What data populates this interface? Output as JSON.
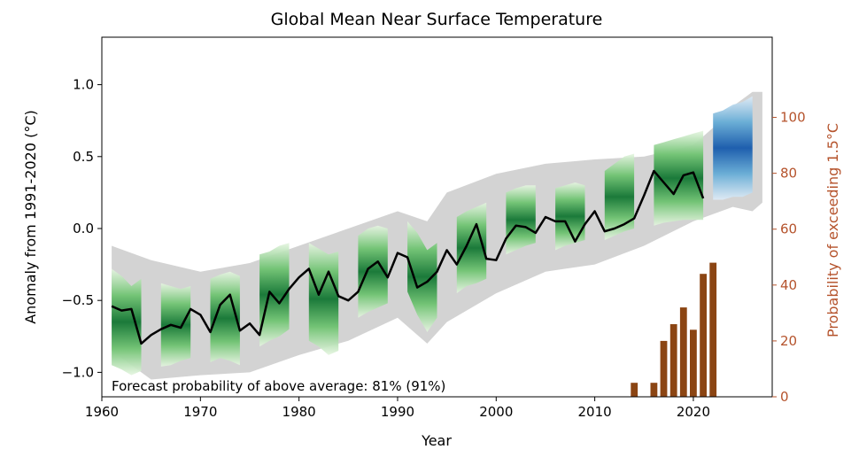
{
  "chart_data": {
    "type": "line",
    "title": "Global Mean Near Surface Temperature",
    "xlabel": "Year",
    "ylabel": "Anomaly from 1991-2020 (°C)",
    "ylabel_right": "Probability of exceeding 1.5°C",
    "xlim": [
      1960,
      2028
    ],
    "ylim": [
      -1.17,
      1.33
    ],
    "ylim_right": [
      0,
      128.7
    ],
    "xticks": [
      "1960",
      "1970",
      "1980",
      "1990",
      "2000",
      "2010",
      "2020"
    ],
    "yticks": [
      "−1.0",
      "−0.5",
      "0.0",
      "0.5",
      "1.0"
    ],
    "yticks_right": [
      "0",
      "20",
      "40",
      "60",
      "80",
      "100"
    ],
    "annotation": "Forecast probability of above average: 81% (91%)",
    "colors": {
      "observed_line": "#000000",
      "hindcast_shade": "#1e8a45",
      "forecast_shade": "#1f6fbf",
      "range_band": "#d3d3d3",
      "probability_bars": "#8b4513",
      "right_axis": "#b5532c"
    },
    "series": [
      {
        "name": "observed",
        "x": [
          1961,
          1962,
          1963,
          1964,
          1965,
          1966,
          1967,
          1968,
          1969,
          1970,
          1971,
          1972,
          1973,
          1974,
          1975,
          1976,
          1977,
          1978,
          1979,
          1980,
          1981,
          1982,
          1983,
          1984,
          1985,
          1986,
          1987,
          1988,
          1989,
          1990,
          1991,
          1992,
          1993,
          1994,
          1995,
          1996,
          1997,
          1998,
          1999,
          2000,
          2001,
          2002,
          2003,
          2004,
          2005,
          2006,
          2007,
          2008,
          2009,
          2010,
          2011,
          2012,
          2013,
          2014,
          2015,
          2016,
          2017,
          2018,
          2019,
          2020,
          2021
        ],
        "y": [
          -0.54,
          -0.57,
          -0.56,
          -0.8,
          -0.74,
          -0.7,
          -0.67,
          -0.69,
          -0.56,
          -0.6,
          -0.72,
          -0.53,
          -0.46,
          -0.71,
          -0.66,
          -0.74,
          -0.44,
          -0.52,
          -0.42,
          -0.34,
          -0.28,
          -0.46,
          -0.3,
          -0.47,
          -0.5,
          -0.44,
          -0.28,
          -0.23,
          -0.34,
          -0.17,
          -0.2,
          -0.41,
          -0.37,
          -0.3,
          -0.15,
          -0.25,
          -0.12,
          0.03,
          -0.21,
          -0.22,
          -0.07,
          0.02,
          0.01,
          -0.03,
          0.08,
          0.05,
          0.05,
          -0.09,
          0.03,
          0.12,
          -0.02,
          0.0,
          0.03,
          0.07,
          0.23,
          0.4,
          0.32,
          0.24,
          0.37,
          0.39,
          0.21
        ]
      },
      {
        "name": "probability",
        "type": "bar",
        "x": [
          2014,
          2016,
          2017,
          2018,
          2019,
          2020,
          2021,
          2022
        ],
        "values": [
          5,
          5,
          20,
          26,
          32,
          24,
          44,
          48
        ]
      }
    ],
    "hindcast_bands": [
      {
        "start": 1961,
        "end": 1964,
        "low": [
          -0.95,
          -0.98,
          -1.02,
          -0.99
        ],
        "high": [
          -0.28,
          -0.33,
          -0.4,
          -0.35
        ]
      },
      {
        "start": 1966,
        "end": 1969,
        "low": [
          -0.96,
          -0.95,
          -0.92,
          -0.9
        ],
        "high": [
          -0.38,
          -0.4,
          -0.42,
          -0.4
        ]
      },
      {
        "start": 1971,
        "end": 1974,
        "low": [
          -0.93,
          -0.9,
          -0.92,
          -0.95
        ],
        "high": [
          -0.35,
          -0.32,
          -0.3,
          -0.33
        ]
      },
      {
        "start": 1976,
        "end": 1979,
        "low": [
          -0.82,
          -0.78,
          -0.75,
          -0.7
        ],
        "high": [
          -0.18,
          -0.16,
          -0.12,
          -0.1
        ]
      },
      {
        "start": 1981,
        "end": 1984,
        "low": [
          -0.78,
          -0.82,
          -0.88,
          -0.85
        ],
        "high": [
          -0.1,
          -0.14,
          -0.18,
          -0.16
        ]
      },
      {
        "start": 1986,
        "end": 1989,
        "low": [
          -0.62,
          -0.58,
          -0.55,
          -0.52
        ],
        "high": [
          -0.05,
          0.0,
          0.02,
          0.0
        ]
      },
      {
        "start": 1991,
        "end": 1994,
        "low": [
          -0.44,
          -0.6,
          -0.72,
          -0.62
        ],
        "high": [
          0.05,
          -0.03,
          -0.15,
          -0.1
        ]
      },
      {
        "start": 1996,
        "end": 1999,
        "low": [
          -0.45,
          -0.4,
          -0.38,
          -0.35
        ],
        "high": [
          0.08,
          0.12,
          0.15,
          0.18
        ]
      },
      {
        "start": 2001,
        "end": 2004,
        "low": [
          -0.18,
          -0.15,
          -0.12,
          -0.1
        ],
        "high": [
          0.25,
          0.28,
          0.3,
          0.3
        ]
      },
      {
        "start": 2006,
        "end": 2009,
        "low": [
          -0.15,
          -0.12,
          -0.1,
          -0.08
        ],
        "high": [
          0.28,
          0.3,
          0.32,
          0.3
        ]
      },
      {
        "start": 2011,
        "end": 2014,
        "low": [
          -0.08,
          -0.05,
          -0.02,
          0.0
        ],
        "high": [
          0.4,
          0.45,
          0.5,
          0.52
        ]
      },
      {
        "start": 2016,
        "end": 2021,
        "low": [
          0.02,
          0.04,
          0.05,
          0.06,
          0.06,
          0.06
        ],
        "high": [
          0.58,
          0.6,
          0.62,
          0.64,
          0.66,
          0.68
        ]
      }
    ],
    "forecast_band": {
      "start": 2022,
      "end": 2026,
      "low": [
        0.2,
        0.2,
        0.22,
        0.22,
        0.25
      ],
      "high": [
        0.8,
        0.82,
        0.86,
        0.88,
        0.92
      ]
    },
    "grey_range": {
      "x": [
        1961,
        1965,
        1970,
        1975,
        1980,
        1985,
        1990,
        1993,
        1995,
        2000,
        2005,
        2010,
        2015,
        2020,
        2022,
        2024,
        2026,
        2027
      ],
      "low": [
        -0.85,
        -1.05,
        -1.02,
        -1.0,
        -0.88,
        -0.78,
        -0.62,
        -0.8,
        -0.65,
        -0.45,
        -0.3,
        -0.25,
        -0.12,
        0.05,
        0.1,
        0.15,
        0.12,
        0.18
      ],
      "high": [
        -0.12,
        -0.22,
        -0.3,
        -0.24,
        -0.12,
        0.0,
        0.12,
        0.05,
        0.25,
        0.38,
        0.45,
        0.48,
        0.5,
        0.58,
        0.7,
        0.85,
        0.95,
        0.95
      ]
    }
  }
}
